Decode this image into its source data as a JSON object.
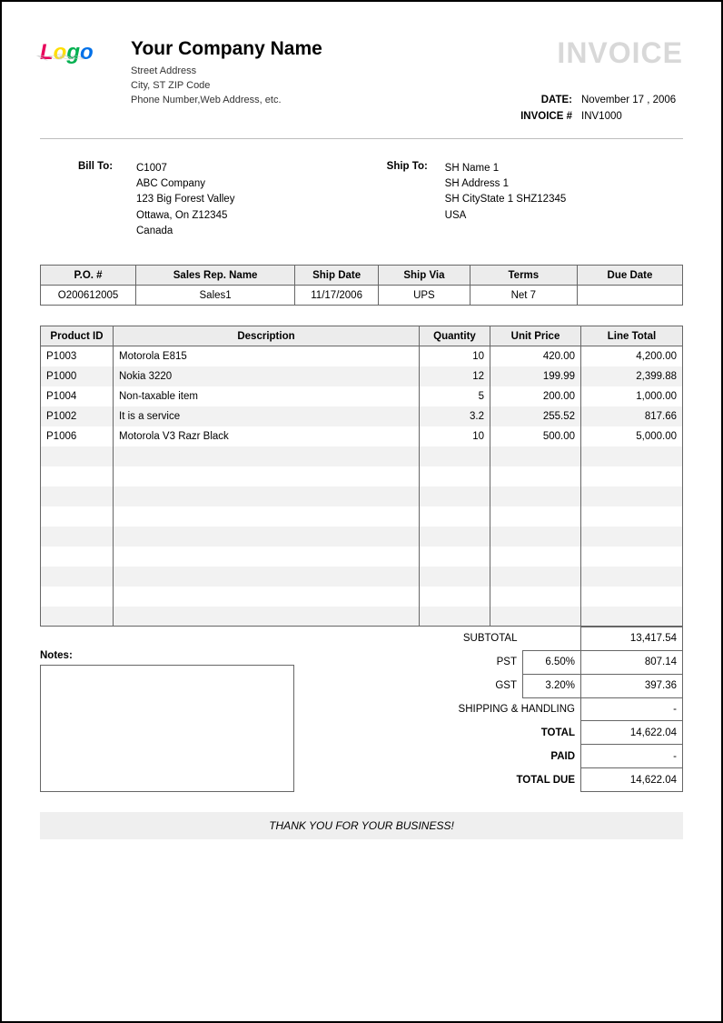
{
  "company": {
    "name": "Your Company Name",
    "address_line1": "Street Address",
    "address_line2": "City, ST  ZIP Code",
    "address_line3": "Phone Number,Web Address, etc."
  },
  "invoice_title": "INVOICE",
  "meta": {
    "date_label": "DATE:",
    "date_value": "November 17 , 2006",
    "number_label": "INVOICE #",
    "number_value": "INV1000"
  },
  "bill_to": {
    "label": "Bill To:",
    "line1": "C1007",
    "line2": "ABC Company",
    "line3": "123 Big Forest Valley",
    "line4": "Ottawa, On Z12345",
    "line5": "Canada"
  },
  "ship_to": {
    "label": "Ship To:",
    "line1": "SH Name 1",
    "line2": "SH Address 1",
    "line3": "SH CityState 1 SHZ12345",
    "line4": "USA"
  },
  "order": {
    "columns": [
      "P.O. #",
      "Sales Rep. Name",
      "Ship Date",
      "Ship Via",
      "Terms",
      "Due Date"
    ],
    "row": [
      "O200612005",
      "Sales1",
      "11/17/2006",
      "UPS",
      "Net 7",
      ""
    ],
    "col_widths": [
      "96px",
      "160px",
      "84px",
      "92px",
      "108px",
      "106px"
    ]
  },
  "items": {
    "columns": [
      "Product ID",
      "Description",
      "Quantity",
      "Unit Price",
      "Line Total"
    ],
    "rows": [
      [
        "P1003",
        "Motorola E815",
        "10",
        "420.00",
        "4,200.00"
      ],
      [
        "P1000",
        "Nokia 3220",
        "12",
        "199.99",
        "2,399.88"
      ],
      [
        "P1004",
        "Non-taxable  item",
        "5",
        "200.00",
        "1,000.00"
      ],
      [
        "P1002",
        "It is a service",
        "3.2",
        "255.52",
        "817.66"
      ],
      [
        "P1006",
        "Motorola V3 Razr Black",
        "10",
        "500.00",
        "5,000.00"
      ]
    ],
    "blank_rows": 9
  },
  "totals": {
    "subtotal_label": "SUBTOTAL",
    "subtotal": "13,417.54",
    "pst_label": "PST",
    "pst_rate": "6.50%",
    "pst": "807.14",
    "gst_label": "GST",
    "gst_rate": "3.20%",
    "gst": "397.36",
    "shipping_label": "SHIPPING & HANDLING",
    "shipping": "-",
    "total_label": "TOTAL",
    "total": "14,622.04",
    "paid_label": "PAID",
    "paid": "-",
    "due_label": "TOTAL DUE",
    "due": "14,622.04"
  },
  "notes_label": "Notes:",
  "thanks": "THANK YOU FOR YOUR BUSINESS!",
  "colors": {
    "header_bg": "#ececec",
    "alt_row_bg": "#f2f2f2",
    "border": "#666666",
    "title_gray": "#d8d8d8",
    "hr": "#bdbdbd"
  }
}
